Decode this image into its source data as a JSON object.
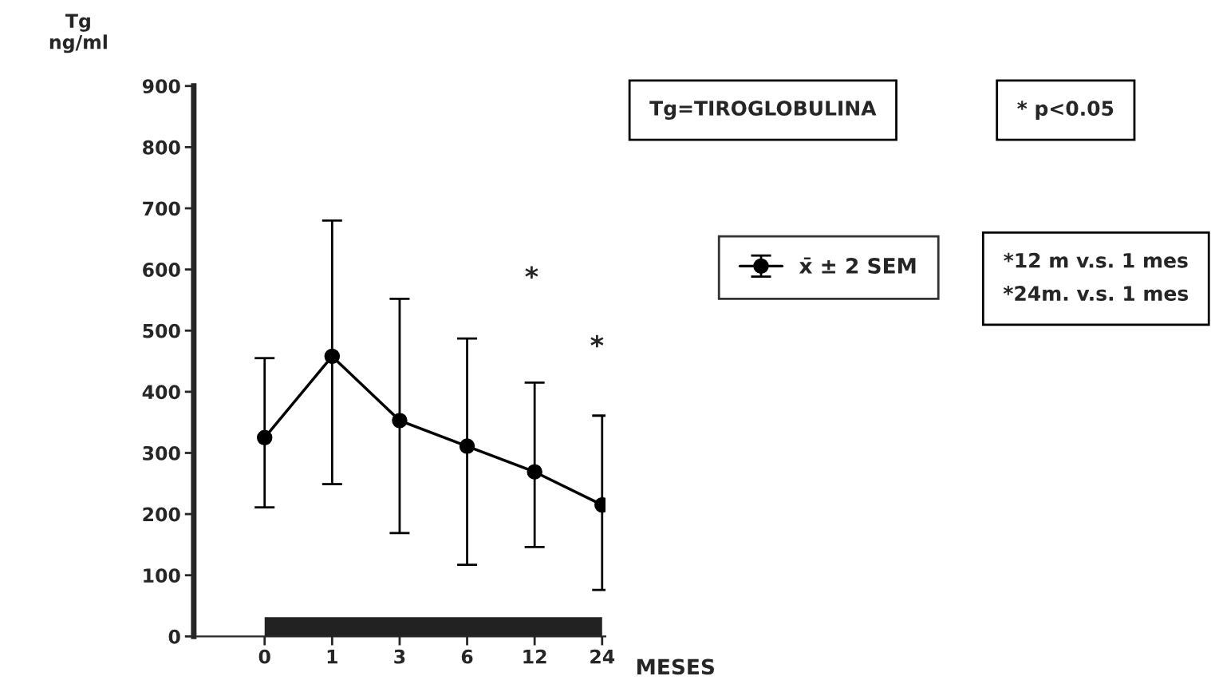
{
  "chart_data": {
    "type": "line",
    "xlabel": "MESES",
    "ylabel": "Tg\nng/ml",
    "categories": [
      "0",
      "1",
      "3",
      "6",
      "12",
      "24"
    ],
    "series": [
      {
        "name": "x̄ ± 2 SEM",
        "color": "#000000",
        "values": [
          325,
          458,
          353,
          311,
          269,
          215
        ],
        "errors": [
          [
            211,
            455
          ],
          [
            249,
            680
          ],
          [
            169,
            552
          ],
          [
            117,
            487
          ],
          [
            146,
            415
          ],
          [
            76,
            361
          ]
        ]
      }
    ],
    "ylim": [
      0,
      900
    ],
    "yticks": [
      0,
      100,
      200,
      300,
      400,
      500,
      600,
      700,
      800,
      900
    ],
    "marker": "circle",
    "line_style": "solid",
    "legend": "right",
    "grid": false,
    "annotations": [
      "Tg=TIROGLOBULINA",
      "* p<0.05",
      "*12 m v.s. 1 mes\n*24m. v.s. 1 mes",
      "*",
      "*"
    ]
  }
}
